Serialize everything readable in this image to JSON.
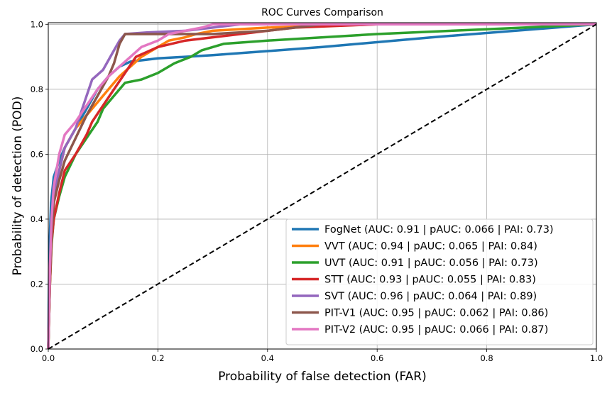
{
  "chart_data": {
    "type": "line",
    "title": "ROC Curves Comparison",
    "xlabel": "Probability of false detection (FAR)",
    "ylabel": "Probability of detection (POD)",
    "xlim": [
      0,
      1
    ],
    "ylim": [
      0,
      1.005
    ],
    "xticks": [
      "0.0",
      "0.2",
      "0.4",
      "0.6",
      "0.8",
      "1.0"
    ],
    "yticks": [
      "0.0",
      "0.2",
      "0.4",
      "0.6",
      "0.8",
      "1.0"
    ],
    "grid": true,
    "legend_position": "lower-right",
    "series": [
      {
        "name": "FogNet (AUC: 0.91 | pAUC: 0.066 | PAI: 0.73)",
        "color": "#1f77b4",
        "x": [
          0,
          0.002,
          0.005,
          0.01,
          0.02,
          0.03,
          0.05,
          0.07,
          0.09,
          0.11,
          0.13,
          0.15,
          0.2,
          0.3,
          0.5,
          0.7,
          1.0
        ],
        "y": [
          0,
          0.3,
          0.45,
          0.53,
          0.58,
          0.62,
          0.68,
          0.74,
          0.8,
          0.84,
          0.87,
          0.885,
          0.895,
          0.905,
          0.93,
          0.96,
          1.0
        ]
      },
      {
        "name": "VVT (AUC: 0.94 | pAUC: 0.065 | PAI: 0.84)",
        "color": "#ff7f0e",
        "x": [
          0,
          0.003,
          0.006,
          0.01,
          0.02,
          0.03,
          0.05,
          0.07,
          0.09,
          0.11,
          0.13,
          0.15,
          0.17,
          0.2,
          0.22,
          0.25,
          0.27,
          0.3,
          0.4,
          0.6,
          1.0
        ],
        "y": [
          0,
          0.2,
          0.35,
          0.45,
          0.55,
          0.62,
          0.68,
          0.72,
          0.76,
          0.8,
          0.84,
          0.87,
          0.9,
          0.93,
          0.95,
          0.96,
          0.97,
          0.98,
          0.99,
          1.0,
          1.0
        ]
      },
      {
        "name": "UVT (AUC: 0.91 | pAUC: 0.056 | PAI: 0.73)",
        "color": "#2ca02c",
        "x": [
          0,
          0.003,
          0.006,
          0.01,
          0.02,
          0.03,
          0.05,
          0.07,
          0.09,
          0.1,
          0.12,
          0.14,
          0.17,
          0.2,
          0.23,
          0.26,
          0.28,
          0.32,
          0.4,
          0.6,
          0.8,
          1.0
        ],
        "y": [
          0,
          0.2,
          0.32,
          0.4,
          0.47,
          0.53,
          0.6,
          0.65,
          0.7,
          0.74,
          0.78,
          0.82,
          0.83,
          0.85,
          0.88,
          0.9,
          0.92,
          0.94,
          0.95,
          0.97,
          0.985,
          1.0
        ]
      },
      {
        "name": "STT (AUC: 0.93 | pAUC: 0.055 | PAI: 0.83)",
        "color": "#d62728",
        "x": [
          0,
          0.003,
          0.006,
          0.01,
          0.02,
          0.03,
          0.05,
          0.07,
          0.08,
          0.1,
          0.12,
          0.14,
          0.16,
          0.2,
          0.25,
          0.3,
          0.35,
          0.4,
          0.45,
          0.6,
          1.0
        ],
        "y": [
          0,
          0.2,
          0.33,
          0.4,
          0.48,
          0.55,
          0.6,
          0.66,
          0.7,
          0.75,
          0.8,
          0.85,
          0.9,
          0.93,
          0.95,
          0.96,
          0.97,
          0.98,
          0.99,
          1.0,
          1.0
        ]
      },
      {
        "name": "SVT (AUC: 0.96 | pAUC: 0.064 | PAI: 0.89)",
        "color": "#9467bd",
        "x": [
          0,
          0.003,
          0.006,
          0.01,
          0.02,
          0.03,
          0.05,
          0.06,
          0.07,
          0.08,
          0.1,
          0.11,
          0.12,
          0.13,
          0.14,
          0.18,
          0.25,
          0.3,
          0.35,
          1.0
        ],
        "y": [
          0,
          0.25,
          0.38,
          0.47,
          0.55,
          0.62,
          0.68,
          0.73,
          0.78,
          0.83,
          0.86,
          0.89,
          0.92,
          0.95,
          0.97,
          0.975,
          0.98,
          0.99,
          1.0,
          1.0
        ]
      },
      {
        "name": "PIT-V1 (AUC: 0.95 | pAUC: 0.062 | PAI: 0.86)",
        "color": "#8c564b",
        "x": [
          0,
          0.003,
          0.006,
          0.01,
          0.02,
          0.03,
          0.05,
          0.07,
          0.09,
          0.11,
          0.12,
          0.13,
          0.14,
          0.2,
          0.3,
          0.4,
          0.45,
          0.5,
          1.0
        ],
        "y": [
          0,
          0.22,
          0.35,
          0.45,
          0.52,
          0.58,
          0.65,
          0.72,
          0.78,
          0.84,
          0.88,
          0.94,
          0.97,
          0.97,
          0.97,
          0.98,
          0.99,
          1.0,
          1.0
        ]
      },
      {
        "name": "PIT-V2 (AUC: 0.95 | pAUC: 0.066 | PAI: 0.87)",
        "color": "#e377c2",
        "x": [
          0,
          0.003,
          0.006,
          0.01,
          0.02,
          0.03,
          0.05,
          0.07,
          0.09,
          0.11,
          0.13,
          0.15,
          0.17,
          0.2,
          0.22,
          0.25,
          0.28,
          0.3,
          1.0
        ],
        "y": [
          0,
          0.25,
          0.4,
          0.5,
          0.6,
          0.66,
          0.7,
          0.75,
          0.8,
          0.84,
          0.87,
          0.9,
          0.93,
          0.95,
          0.97,
          0.98,
          0.99,
          1.0,
          1.0
        ]
      }
    ],
    "reference_line": {
      "x": [
        0,
        1
      ],
      "y": [
        0,
        1
      ],
      "style": "dashed",
      "color": "#000000"
    }
  }
}
